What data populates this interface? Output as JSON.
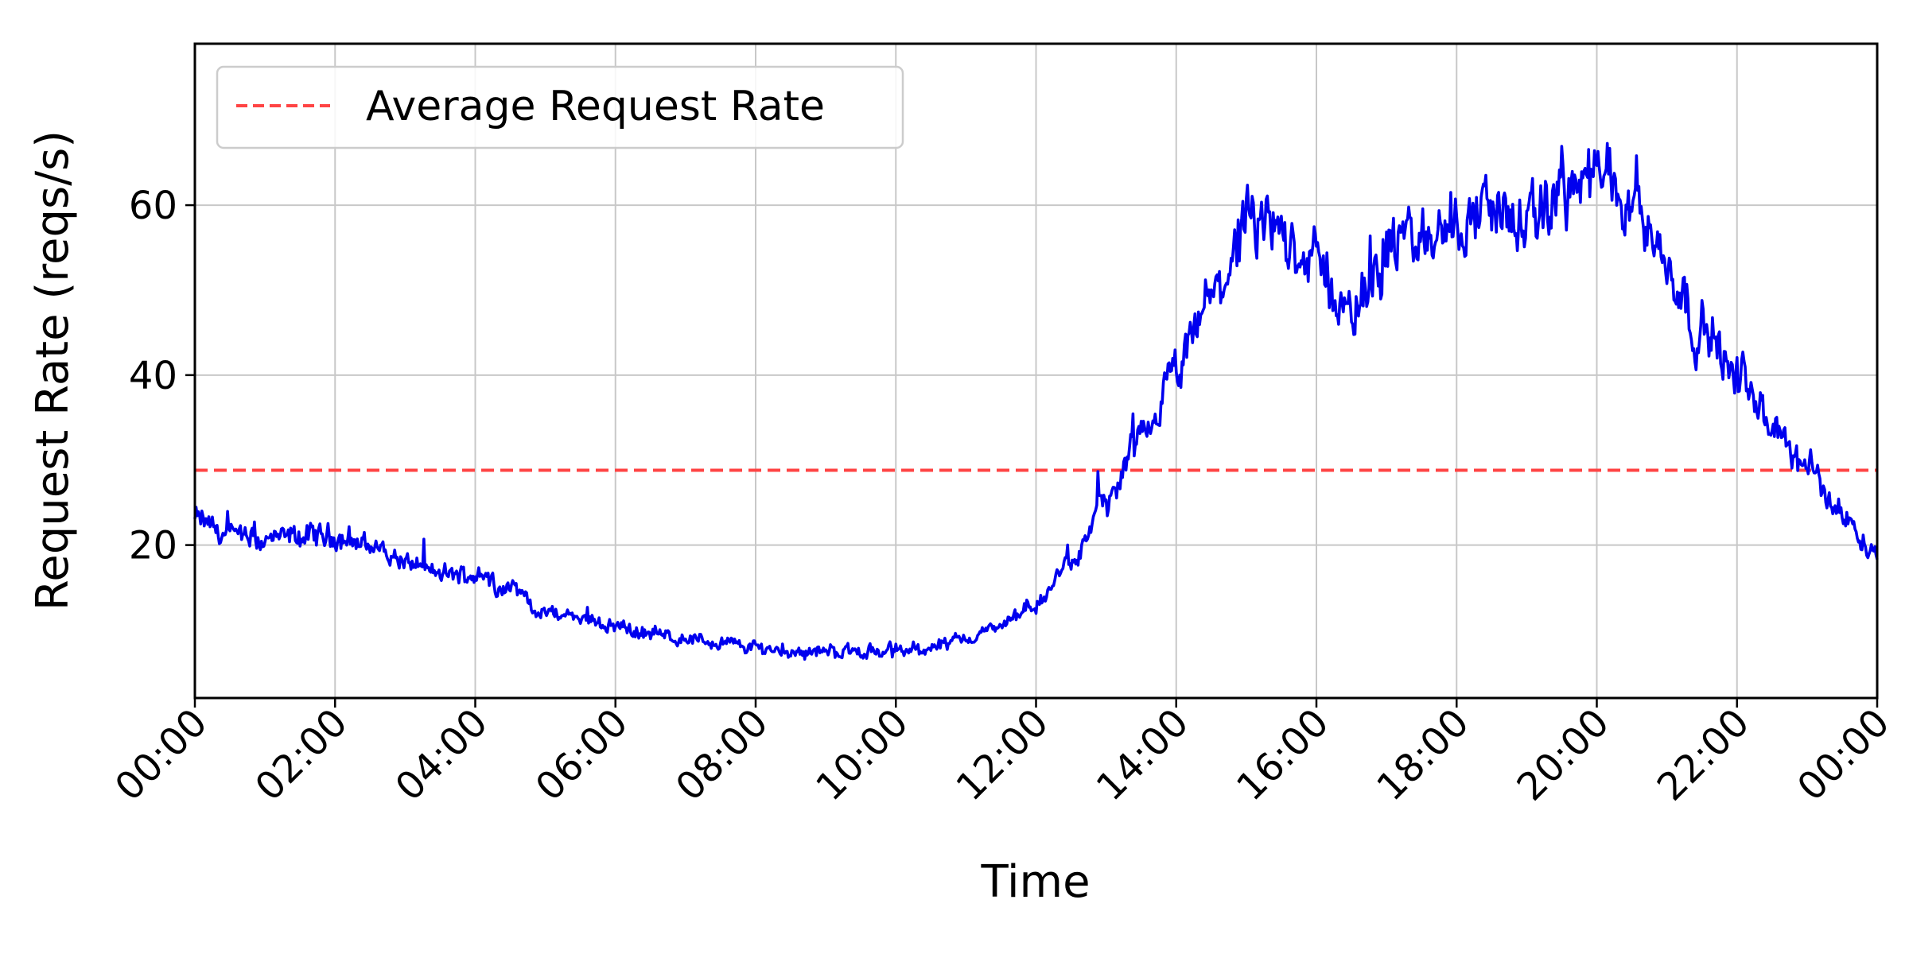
{
  "chart_data": {
    "type": "line",
    "title": "",
    "xlabel": "Time",
    "ylabel": "Request Rate (reqs/s)",
    "x_range_hours": [
      0,
      24
    ],
    "ylim": [
      2,
      79
    ],
    "x_ticks": [
      {
        "hour": 0,
        "label": "00:00"
      },
      {
        "hour": 2,
        "label": "02:00"
      },
      {
        "hour": 4,
        "label": "04:00"
      },
      {
        "hour": 6,
        "label": "06:00"
      },
      {
        "hour": 8,
        "label": "08:00"
      },
      {
        "hour": 10,
        "label": "10:00"
      },
      {
        "hour": 12,
        "label": "12:00"
      },
      {
        "hour": 14,
        "label": "14:00"
      },
      {
        "hour": 16,
        "label": "16:00"
      },
      {
        "hour": 18,
        "label": "18:00"
      },
      {
        "hour": 20,
        "label": "20:00"
      },
      {
        "hour": 22,
        "label": "22:00"
      },
      {
        "hour": 24,
        "label": "00:00"
      }
    ],
    "y_ticks": [
      {
        "value": 20,
        "label": "20"
      },
      {
        "value": 40,
        "label": "40"
      },
      {
        "value": 60,
        "label": "60"
      }
    ],
    "grid": true,
    "legend": {
      "position": "top-left",
      "entries": [
        {
          "label": "Average Request Rate",
          "style": "dashed",
          "color": "#ff4444"
        }
      ]
    },
    "series": [
      {
        "name": "Request Rate",
        "color": "#0000ee",
        "trend": {
          "hours": [
            0,
            0.5,
            1,
            1.5,
            2,
            2.5,
            3,
            3.5,
            4,
            4.5,
            5,
            5.5,
            6,
            6.5,
            7,
            7.5,
            8,
            8.5,
            9,
            9.5,
            10,
            10.5,
            11,
            11.5,
            12,
            12.5,
            13,
            13.5,
            14,
            14.5,
            15,
            15.5,
            16,
            16.5,
            17,
            17.5,
            18,
            18.5,
            19,
            19.5,
            20,
            20.5,
            21,
            21.5,
            22,
            22.5,
            23,
            23.5,
            24
          ],
          "values": [
            23,
            21,
            20.5,
            21,
            21,
            20,
            18,
            16.5,
            16.5,
            15,
            12,
            11.5,
            10.5,
            9.5,
            9,
            8.5,
            8,
            7.5,
            7.5,
            7.5,
            7.5,
            8,
            9,
            10.5,
            13,
            18,
            25,
            32,
            40,
            49,
            57,
            57,
            53,
            47,
            55,
            56,
            58,
            60,
            57,
            62,
            63,
            62,
            53,
            45,
            40,
            34,
            29,
            24,
            19
          ]
        },
        "noise_amplitude": 3.2
      },
      {
        "name": "Average Request Rate",
        "color": "#ff4444",
        "style": "dashed",
        "constant_value": 28.8
      }
    ]
  }
}
